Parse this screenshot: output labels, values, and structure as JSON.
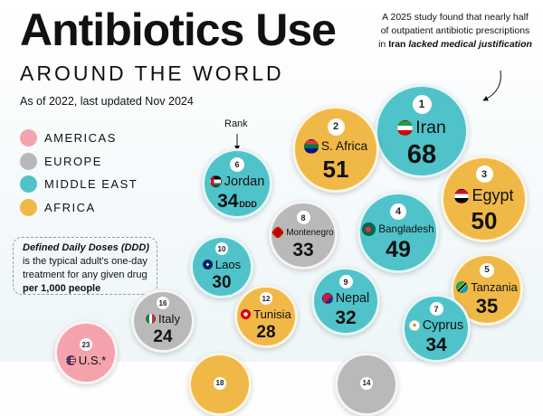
{
  "title": "Antibiotics Use",
  "subtitle": "AROUND THE WORLD",
  "as_of": "As of 2022, last updated Nov 2024",
  "legend": [
    {
      "label": "AMERICAS",
      "color": "#f4a3ad"
    },
    {
      "label": "EUROPE",
      "color": "#b9b9b9"
    },
    {
      "label": "MIDDLE EAST",
      "color": "#4fc3c9"
    },
    {
      "label": "AFRICA",
      "color": "#f0b947"
    }
  ],
  "ddd_note": {
    "term": "Defined Daily Doses (DDD)",
    "text_1": "is the typical adult's one-day treatment for any given drug",
    "emphasis": "per 1,000 people"
  },
  "annotation": {
    "line_1": "A 2025 study found that nearly half of outpatient antibiotic prescriptions in",
    "country": "Iran",
    "line_2": "lacked medical justification"
  },
  "rank_label": "Rank",
  "unit_label": "DDD",
  "colors": {
    "americas": "#f4a3ad",
    "europe": "#b9b9b9",
    "middle_east": "#4fc3c9",
    "africa": "#f0b947"
  },
  "chart_data": {
    "type": "bubble",
    "value_label": "Defined Daily Doses (DDD) per 1,000 people",
    "points": [
      {
        "rank": "1",
        "country": "Iran",
        "value": 68,
        "region": "Middle East",
        "flag": "iran-flag"
      },
      {
        "rank": "2",
        "country": "S. Africa",
        "value": 51,
        "region": "Africa",
        "flag": "south-africa-flag"
      },
      {
        "rank": "3",
        "country": "Egypt",
        "value": 50,
        "region": "Africa",
        "flag": "egypt-flag"
      },
      {
        "rank": "4",
        "country": "Bangladesh",
        "value": 49,
        "region": "Middle East",
        "flag": "bangladesh-flag"
      },
      {
        "rank": "5",
        "country": "Tanzania",
        "value": 35,
        "region": "Africa",
        "flag": "tanzania-flag"
      },
      {
        "rank": "6",
        "country": "Jordan",
        "value": 34,
        "region": "Middle East",
        "flag": "jordan-flag"
      },
      {
        "rank": "7",
        "country": "Cyprus",
        "value": 34,
        "region": "Middle East",
        "flag": "cyprus-flag"
      },
      {
        "rank": "8",
        "country": "Montenegro",
        "value": 33,
        "region": "Europe",
        "flag": "montenegro-flag"
      },
      {
        "rank": "9",
        "country": "Nepal",
        "value": 32,
        "region": "Middle East",
        "flag": "nepal-flag"
      },
      {
        "rank": "10",
        "country": "Laos",
        "value": 30,
        "region": "Middle East",
        "flag": "laos-flag"
      },
      {
        "rank": "12",
        "country": "Tunisia",
        "value": 28,
        "region": "Africa",
        "flag": "tunisia-flag"
      },
      {
        "rank": "16",
        "country": "Italy",
        "value": 24,
        "region": "Europe",
        "flag": "italy-flag"
      },
      {
        "rank": "23",
        "country": "U.S.*",
        "value": null,
        "region": "Americas",
        "flag": "us-flag"
      },
      {
        "rank": "18",
        "country": "",
        "value": null,
        "region": "Africa",
        "flag": ""
      },
      {
        "rank": "14",
        "country": "",
        "value": null,
        "region": "Europe",
        "flag": ""
      }
    ]
  }
}
